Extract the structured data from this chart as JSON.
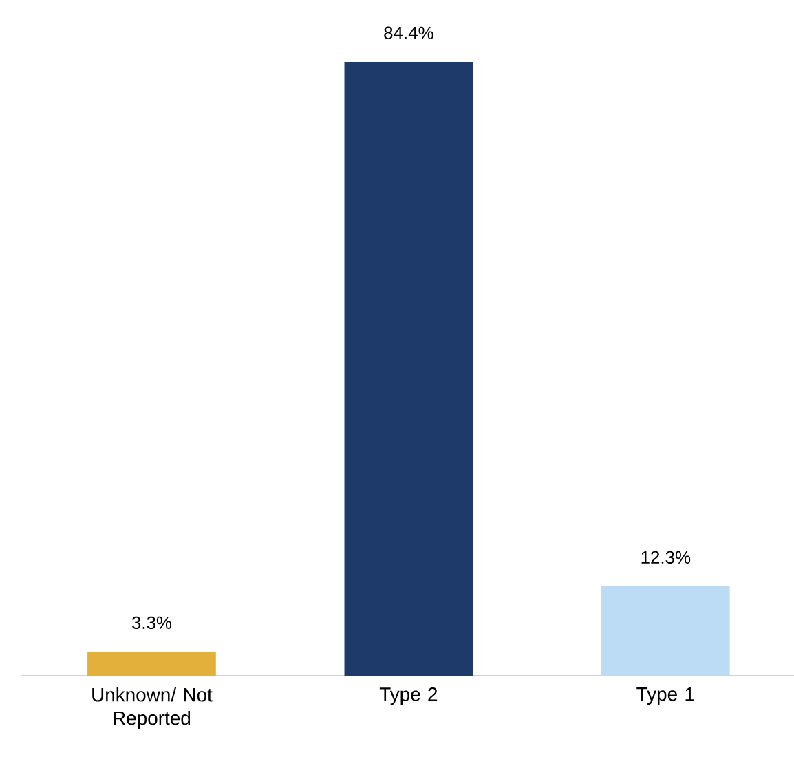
{
  "chart_data": {
    "type": "bar",
    "categories": [
      "Unknown/ Not Reported",
      "Type 2",
      "Type 1"
    ],
    "values": [
      3.3,
      84.4,
      12.3
    ],
    "colors": [
      "#e3b03c",
      "#1d3a6b",
      "#bcdcf5"
    ],
    "value_labels": [
      "3.3%",
      "84.4%",
      "12.3%"
    ]
  }
}
